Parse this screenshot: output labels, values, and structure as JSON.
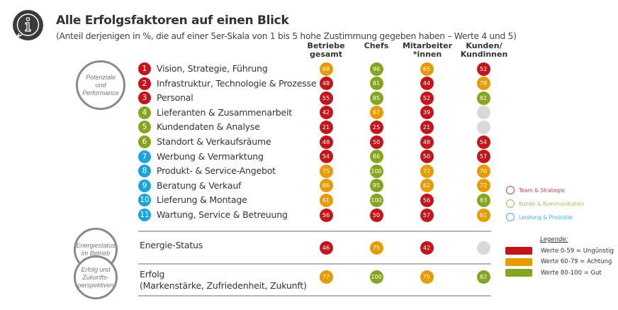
{
  "header": {
    "title": "Alle Erfolgsfaktoren auf einen Blick",
    "subtitle": "(Anteil derjenigen in %, die auf einer 5er-Skala von 1 bis 5 hohe Zustimmung gegeben haben – Werte 4 und 5)",
    "icon": "info-speech-icon"
  },
  "columns": [
    "Betriebe\ngesamt",
    "Chefs",
    "Mitarbeiter\n*innen",
    "Kunden/\nKundinnen"
  ],
  "groups": {
    "potenziale": "Potenziale\nund\nPerformance",
    "energie": "Energiestatus\nim Betrieb",
    "erfolg": "Erfolg und\nZukunfts-\nperspektiven"
  },
  "colors": {
    "red": "#c3161c",
    "orange": "#e69b00",
    "green": "#86a51f",
    "blue": "#1aa4db",
    "grey": "#d9d9d9"
  },
  "factors": [
    {
      "num": "1",
      "label": "Vision, Strategie, Führung",
      "cat": "red",
      "values": [
        68,
        96,
        65,
        52
      ]
    },
    {
      "num": "2",
      "label": "Infrastruktur, Technologie & Prozesse",
      "cat": "red",
      "values": [
        48,
        81,
        44,
        79
      ]
    },
    {
      "num": "3",
      "label": "Personal",
      "cat": "red",
      "values": [
        55,
        85,
        52,
        82
      ]
    },
    {
      "num": "4",
      "label": "Lieferanten & Zusammenarbeit",
      "cat": "green",
      "values": [
        42,
        67,
        39,
        null
      ]
    },
    {
      "num": "5",
      "label": "Kundendaten & Analyse",
      "cat": "green",
      "values": [
        21,
        25,
        21,
        null
      ]
    },
    {
      "num": "6",
      "label": "Standort & Verkaufsräume",
      "cat": "green",
      "values": [
        48,
        50,
        48,
        54
      ]
    },
    {
      "num": "7",
      "label": "Werbung & Vermarktung",
      "cat": "blue",
      "values": [
        54,
        86,
        50,
        57
      ]
    },
    {
      "num": "8",
      "label": "Produkt- & Service-Angebot",
      "cat": "blue",
      "values": [
        75,
        100,
        72,
        70
      ]
    },
    {
      "num": "9",
      "label": "Beratung & Verkauf",
      "cat": "blue",
      "values": [
        66,
        95,
        62,
        72
      ]
    },
    {
      "num": "10",
      "label": "Lieferung & Montage",
      "cat": "blue",
      "values": [
        61,
        100,
        56,
        83
      ]
    },
    {
      "num": "11",
      "label": "Wartung, Service & Betreuung",
      "cat": "blue",
      "values": [
        56,
        50,
        57,
        61
      ]
    }
  ],
  "energie": {
    "label": "Energie-Status",
    "values": [
      46,
      75,
      42,
      null
    ]
  },
  "erfolg": {
    "label": "Erfolg\n(Markenstärke, Zufriedenheit, Zukunft)",
    "values": [
      77,
      100,
      75,
      82
    ]
  },
  "categories": [
    {
      "label": "Team & Strategie",
      "color": "#c8435a"
    },
    {
      "label": "Kunde & Kommunikation",
      "color": "#a9b85a"
    },
    {
      "label": "Leistung & Produkte",
      "color": "#3bb5dc"
    }
  ],
  "legend": {
    "title": "Legende:",
    "items": [
      {
        "label": "Werte 0-59 = Ungünstig",
        "color": "#c3161c"
      },
      {
        "label": "Werte 60-79 = Achtung",
        "color": "#e69b00"
      },
      {
        "label": "Werte 80-100 = Gut",
        "color": "#86a51f"
      }
    ]
  }
}
